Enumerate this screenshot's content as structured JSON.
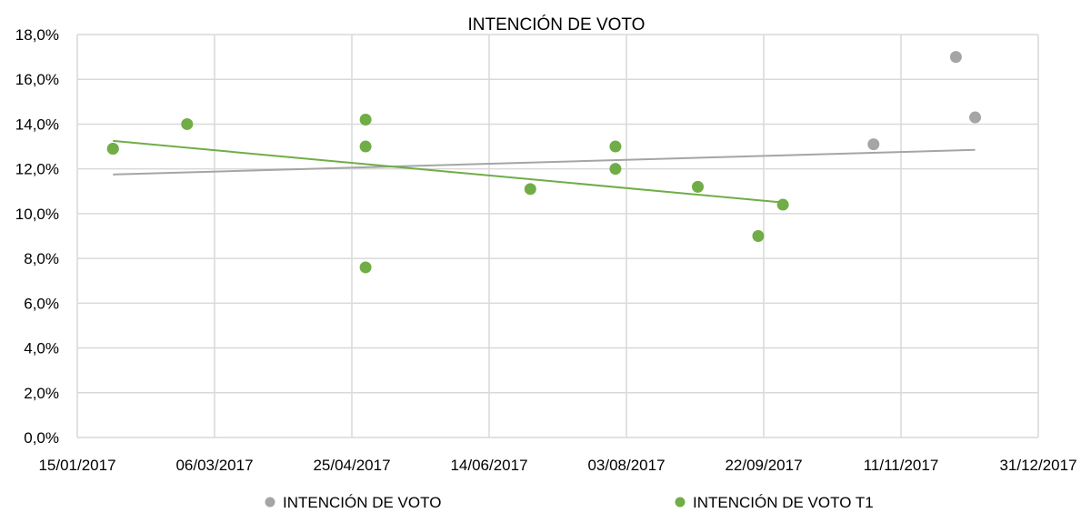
{
  "chart_data": {
    "type": "scatter",
    "title": "INTENCIÓN DE VOTO",
    "xlabel": "",
    "ylabel": "",
    "x_axis": {
      "min": "2017-01-15",
      "max": "2017-12-31",
      "tick_labels": [
        "15/01/2017",
        "06/03/2017",
        "25/04/2017",
        "14/06/2017",
        "03/08/2017",
        "22/09/2017",
        "11/11/2017",
        "31/12/2017"
      ],
      "ticks": [
        "2017-01-15",
        "2017-03-06",
        "2017-04-25",
        "2017-06-14",
        "2017-08-03",
        "2017-09-22",
        "2017-11-11",
        "2017-12-31"
      ]
    },
    "y_axis": {
      "min": 0,
      "max": 18,
      "step": 2,
      "tick_labels": [
        "0,0%",
        "2,0%",
        "4,0%",
        "6,0%",
        "8,0%",
        "10,0%",
        "12,0%",
        "14,0%",
        "16,0%",
        "18,0%"
      ]
    },
    "grid": true,
    "legend_position": "bottom",
    "series": [
      {
        "name": "INTENCIÓN DE VOTO",
        "color": "#a5a5a5",
        "points": [
          {
            "x": "2017-01-28",
            "y": 12.9
          },
          {
            "x": "2017-11-01",
            "y": 13.1
          },
          {
            "x": "2017-12-01",
            "y": 17.0
          },
          {
            "x": "2017-12-08",
            "y": 14.3
          }
        ],
        "trendline": {
          "start": {
            "x": "2017-01-28",
            "y": 11.75
          },
          "end": {
            "x": "2017-12-08",
            "y": 12.85
          }
        }
      },
      {
        "name": "INTENCIÓN DE VOTO T1",
        "color": "#70ad47",
        "points": [
          {
            "x": "2017-01-28",
            "y": 12.9
          },
          {
            "x": "2017-02-24",
            "y": 14.0
          },
          {
            "x": "2017-04-30",
            "y": 14.2
          },
          {
            "x": "2017-04-30",
            "y": 13.0
          },
          {
            "x": "2017-04-30",
            "y": 7.6
          },
          {
            "x": "2017-06-29",
            "y": 11.1
          },
          {
            "x": "2017-07-30",
            "y": 13.0
          },
          {
            "x": "2017-07-30",
            "y": 12.0
          },
          {
            "x": "2017-08-29",
            "y": 11.2
          },
          {
            "x": "2017-09-20",
            "y": 9.0
          },
          {
            "x": "2017-09-29",
            "y": 10.4
          }
        ],
        "trendline": {
          "start": {
            "x": "2017-01-28",
            "y": 13.25
          },
          "end": {
            "x": "2017-09-29",
            "y": 10.5
          }
        }
      }
    ]
  }
}
